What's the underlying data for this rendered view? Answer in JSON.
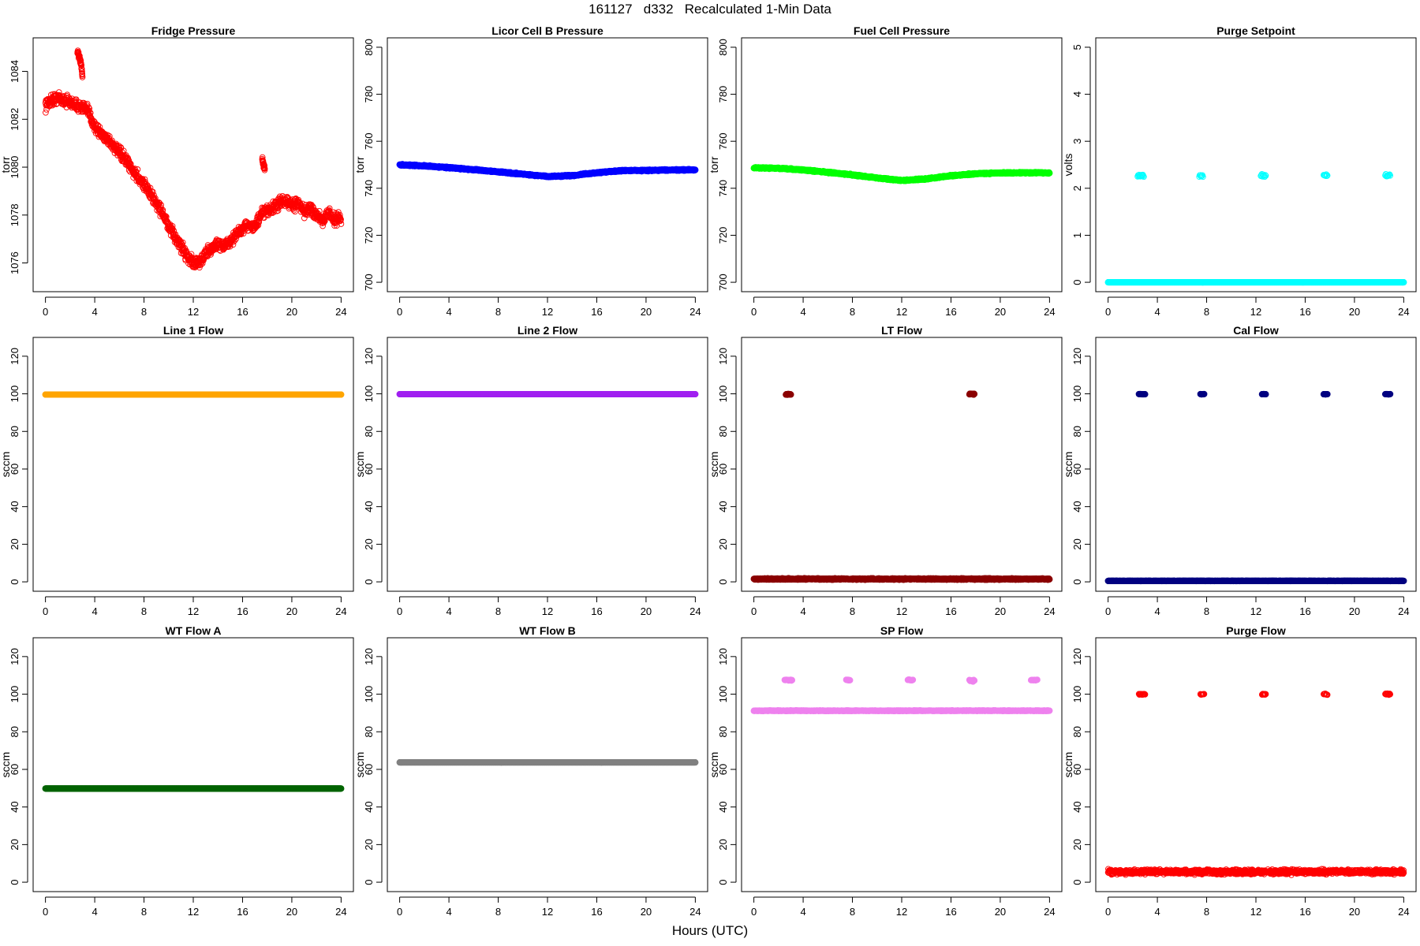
{
  "title": "161127   d332   Recalculated 1-Min Data",
  "xlabel": "Hours (UTC)",
  "chart_data": [
    {
      "type": "scatter",
      "title": "Fridge Pressure",
      "ylabel": "torr",
      "color": "#ff0000",
      "marker": "open",
      "xlim": [
        -1,
        25
      ],
      "ylim": [
        1074.8,
        1085.4
      ],
      "xticks": [
        0,
        4,
        8,
        12,
        16,
        20,
        24
      ],
      "yticks": [
        1076,
        1078,
        1080,
        1082,
        1084
      ],
      "segments": [
        {
          "x": [
            0,
            0.5,
            1,
            1.5,
            2,
            2.5,
            3,
            3.5,
            4,
            4.5,
            5,
            5.5,
            6,
            6.5,
            7,
            7.5,
            8,
            8.5,
            9,
            9.5,
            10,
            10.5,
            11,
            11.5,
            12,
            12.5,
            13,
            13.5,
            14,
            14.5,
            15,
            15.5,
            16,
            16.5,
            17,
            17.5,
            18,
            18.5,
            19,
            19.5,
            20,
            20.5,
            21,
            21.5,
            22,
            22.5,
            23,
            23.5,
            24
          ],
          "y": [
            1082.6,
            1082.8,
            1082.9,
            1082.8,
            1082.7,
            1082.6,
            1082.5,
            1082.3,
            1081.7,
            1081.4,
            1081.2,
            1080.9,
            1080.6,
            1080.3,
            1079.9,
            1079.6,
            1079.3,
            1078.9,
            1078.5,
            1078.1,
            1077.5,
            1077.1,
            1076.7,
            1076.3,
            1076.0,
            1076.0,
            1076.4,
            1076.6,
            1076.8,
            1076.7,
            1076.9,
            1077.2,
            1077.4,
            1077.6,
            1077.5,
            1078.0,
            1078.2,
            1078.3,
            1078.5,
            1078.6,
            1078.4,
            1078.5,
            1078.1,
            1078.3,
            1078.0,
            1077.8,
            1078.1,
            1077.8,
            1077.9
          ],
          "jitter": 0.35,
          "n": 1400
        },
        {
          "x": [
            2.6,
            2.75,
            2.9,
            3.0
          ],
          "y": [
            1084.8,
            1084.6,
            1084.3,
            1083.8
          ],
          "jitter": 0.15,
          "n": 50
        },
        {
          "x": [
            17.6,
            17.8
          ],
          "y": [
            1080.3,
            1079.9
          ],
          "jitter": 0.2,
          "n": 30
        }
      ]
    },
    {
      "type": "scatter",
      "title": "Licor Cell B Pressure",
      "ylabel": "torr",
      "color": "#0000ff",
      "marker": "filled",
      "xlim": [
        -1,
        25
      ],
      "ylim": [
        696,
        804
      ],
      "xticks": [
        0,
        4,
        8,
        12,
        16,
        20,
        24
      ],
      "yticks": [
        700,
        720,
        740,
        760,
        780,
        800
      ],
      "segments": [
        {
          "x": [
            0,
            2,
            4,
            6,
            8,
            10,
            12,
            14,
            16,
            18,
            20,
            22,
            24
          ],
          "y": [
            750,
            749.5,
            748.8,
            747.9,
            747,
            746,
            745,
            745.4,
            746.6,
            747.5,
            747.6,
            747.8,
            747.8
          ],
          "jitter": 0.4,
          "n": 1440
        }
      ]
    },
    {
      "type": "scatter",
      "title": "Fuel Cell Pressure",
      "ylabel": "torr",
      "color": "#00ff00",
      "marker": "filled",
      "xlim": [
        -1,
        25
      ],
      "ylim": [
        696,
        804
      ],
      "xticks": [
        0,
        4,
        8,
        12,
        16,
        20,
        24
      ],
      "yticks": [
        700,
        720,
        740,
        760,
        780,
        800
      ],
      "segments": [
        {
          "x": [
            0,
            2,
            4,
            6,
            8,
            10,
            12,
            14,
            16,
            18,
            20,
            22,
            24
          ],
          "y": [
            748.7,
            748.5,
            747.8,
            746.8,
            745.7,
            744.4,
            743.3,
            744.0,
            745.3,
            746.2,
            746.5,
            746.6,
            746.6
          ],
          "jitter": 0.4,
          "n": 1440
        }
      ]
    },
    {
      "type": "scatter",
      "title": "Purge Setpoint",
      "ylabel": "volts",
      "color": "#00ffff",
      "marker": "mixed",
      "xlim": [
        -1,
        25
      ],
      "ylim": [
        -0.2,
        5.2
      ],
      "xticks": [
        0,
        4,
        8,
        12,
        16,
        20,
        24
      ],
      "yticks": [
        0,
        1,
        2,
        3,
        4,
        5
      ],
      "segments": [
        {
          "x": [
            0,
            24
          ],
          "y": [
            0,
            0
          ],
          "jitter": 0,
          "n": 1200,
          "filled": true
        },
        {
          "x": [
            2.4,
            2.9
          ],
          "y": [
            2.27,
            2.27
          ],
          "jitter": 0.04,
          "n": 14
        },
        {
          "x": [
            7.4,
            7.7
          ],
          "y": [
            2.27,
            2.27
          ],
          "jitter": 0.04,
          "n": 8
        },
        {
          "x": [
            12.4,
            12.8
          ],
          "y": [
            2.27,
            2.27
          ],
          "jitter": 0.04,
          "n": 10
        },
        {
          "x": [
            17.5,
            17.8
          ],
          "y": [
            2.27,
            2.27
          ],
          "jitter": 0.04,
          "n": 8
        },
        {
          "x": [
            22.5,
            22.9
          ],
          "y": [
            2.27,
            2.27
          ],
          "jitter": 0.04,
          "n": 10
        }
      ]
    },
    {
      "type": "scatter",
      "title": "Line 1 Flow",
      "ylabel": "sccm",
      "color": "#ffa500",
      "marker": "filled",
      "xlim": [
        -1,
        25
      ],
      "ylim": [
        -5,
        130
      ],
      "xticks": [
        0,
        4,
        8,
        12,
        16,
        20,
        24
      ],
      "yticks": [
        0,
        20,
        40,
        60,
        80,
        100,
        120
      ],
      "segments": [
        {
          "x": [
            0,
            24
          ],
          "y": [
            99.6,
            99.6
          ],
          "jitter": 0,
          "n": 1200
        }
      ]
    },
    {
      "type": "scatter",
      "title": "Line 2 Flow",
      "ylabel": "sccm",
      "color": "#a020f0",
      "marker": "filled",
      "xlim": [
        -1,
        25
      ],
      "ylim": [
        -5,
        130
      ],
      "xticks": [
        0,
        4,
        8,
        12,
        16,
        20,
        24
      ],
      "yticks": [
        0,
        20,
        40,
        60,
        80,
        100,
        120
      ],
      "segments": [
        {
          "x": [
            0,
            24
          ],
          "y": [
            99.8,
            99.8
          ],
          "jitter": 0,
          "n": 1200
        }
      ]
    },
    {
      "type": "scatter",
      "title": "LT Flow",
      "ylabel": "sccm",
      "color": "#8b0000",
      "marker": "filled",
      "xlim": [
        -1,
        25
      ],
      "ylim": [
        -5,
        130
      ],
      "xticks": [
        0,
        4,
        8,
        12,
        16,
        20,
        24
      ],
      "yticks": [
        0,
        20,
        40,
        60,
        80,
        100,
        120
      ],
      "segments": [
        {
          "x": [
            0,
            24
          ],
          "y": [
            1.5,
            1.5
          ],
          "jitter": 0.5,
          "n": 1200
        },
        {
          "x": [
            2.6,
            3.0
          ],
          "y": [
            99.7,
            99.7
          ],
          "jitter": 0.4,
          "n": 14
        },
        {
          "x": [
            17.5,
            17.9
          ],
          "y": [
            99.9,
            99.9
          ],
          "jitter": 0.4,
          "n": 14
        }
      ]
    },
    {
      "type": "scatter",
      "title": "Cal Flow",
      "ylabel": "sccm",
      "color": "#000080",
      "marker": "filled",
      "xlim": [
        -1,
        25
      ],
      "ylim": [
        -5,
        130
      ],
      "xticks": [
        0,
        4,
        8,
        12,
        16,
        20,
        24
      ],
      "yticks": [
        0,
        20,
        40,
        60,
        80,
        100,
        120
      ],
      "segments": [
        {
          "x": [
            0,
            24
          ],
          "y": [
            0.5,
            0.5
          ],
          "jitter": 0.1,
          "n": 1200
        },
        {
          "x": [
            2.5,
            3.0
          ],
          "y": [
            99.8,
            99.8
          ],
          "jitter": 0.1,
          "n": 14
        },
        {
          "x": [
            7.5,
            7.8
          ],
          "y": [
            99.8,
            99.8
          ],
          "jitter": 0.1,
          "n": 10
        },
        {
          "x": [
            12.5,
            12.8
          ],
          "y": [
            99.8,
            99.8
          ],
          "jitter": 0.1,
          "n": 10
        },
        {
          "x": [
            17.5,
            17.8
          ],
          "y": [
            99.8,
            99.8
          ],
          "jitter": 0.1,
          "n": 10
        },
        {
          "x": [
            22.5,
            22.9
          ],
          "y": [
            99.8,
            99.8
          ],
          "jitter": 0.1,
          "n": 12
        }
      ]
    },
    {
      "type": "scatter",
      "title": "WT Flow A",
      "ylabel": "sccm",
      "color": "#006400",
      "marker": "filled",
      "xlim": [
        -1,
        25
      ],
      "ylim": [
        -5,
        130
      ],
      "xticks": [
        0,
        4,
        8,
        12,
        16,
        20,
        24
      ],
      "yticks": [
        0,
        20,
        40,
        60,
        80,
        100,
        120
      ],
      "segments": [
        {
          "x": [
            0,
            24
          ],
          "y": [
            49.8,
            49.8
          ],
          "jitter": 0,
          "n": 1200
        }
      ]
    },
    {
      "type": "scatter",
      "title": "WT Flow B",
      "ylabel": "sccm",
      "color": "#808080",
      "marker": "filled",
      "xlim": [
        -1,
        25
      ],
      "ylim": [
        -5,
        130
      ],
      "xticks": [
        0,
        4,
        8,
        12,
        16,
        20,
        24
      ],
      "yticks": [
        0,
        20,
        40,
        60,
        80,
        100,
        120
      ],
      "segments": [
        {
          "x": [
            0,
            24
          ],
          "y": [
            63.7,
            63.7
          ],
          "jitter": 0,
          "n": 1200
        }
      ]
    },
    {
      "type": "scatter",
      "title": "SP Flow",
      "ylabel": "sccm",
      "color": "#ee82ee",
      "marker": "filled",
      "xlim": [
        -1,
        25
      ],
      "ylim": [
        -5,
        130
      ],
      "xticks": [
        0,
        4,
        8,
        12,
        16,
        20,
        24
      ],
      "yticks": [
        0,
        20,
        40,
        60,
        80,
        100,
        120
      ],
      "segments": [
        {
          "x": [
            0,
            24
          ],
          "y": [
            91.2,
            91.2
          ],
          "jitter": 0.2,
          "n": 1200
        },
        {
          "x": [
            2.5,
            3.1
          ],
          "y": [
            107.5,
            107.5
          ],
          "jitter": 0.4,
          "n": 12
        },
        {
          "x": [
            7.5,
            7.8
          ],
          "y": [
            107.5,
            107.5
          ],
          "jitter": 0.3,
          "n": 8
        },
        {
          "x": [
            12.5,
            12.9
          ],
          "y": [
            107.5,
            107.5
          ],
          "jitter": 0.3,
          "n": 8
        },
        {
          "x": [
            17.5,
            17.9
          ],
          "y": [
            107.2,
            107.2
          ],
          "jitter": 0.6,
          "n": 8
        },
        {
          "x": [
            22.5,
            23.0
          ],
          "y": [
            107.5,
            107.5
          ],
          "jitter": 0.3,
          "n": 10
        }
      ]
    },
    {
      "type": "scatter",
      "title": "Purge Flow",
      "ylabel": "sccm",
      "color": "#ff0000",
      "marker": "open",
      "xlim": [
        -1,
        25
      ],
      "ylim": [
        -5,
        130
      ],
      "xticks": [
        0,
        4,
        8,
        12,
        16,
        20,
        24
      ],
      "yticks": [
        0,
        20,
        40,
        60,
        80,
        100,
        120
      ],
      "segments": [
        {
          "x": [
            0,
            24
          ],
          "y": [
            5.5,
            5.5
          ],
          "jitter": 1.8,
          "n": 1200
        },
        {
          "x": [
            2.5,
            3.0
          ],
          "y": [
            100,
            100
          ],
          "jitter": 0.5,
          "n": 14
        },
        {
          "x": [
            7.5,
            7.8
          ],
          "y": [
            100,
            100
          ],
          "jitter": 0.5,
          "n": 8
        },
        {
          "x": [
            12.5,
            12.8
          ],
          "y": [
            100,
            100
          ],
          "jitter": 0.6,
          "n": 12
        },
        {
          "x": [
            17.5,
            17.8
          ],
          "y": [
            100,
            100
          ],
          "jitter": 0.5,
          "n": 8
        },
        {
          "x": [
            22.5,
            22.9
          ],
          "y": [
            100,
            100
          ],
          "jitter": 0.5,
          "n": 12
        }
      ]
    }
  ]
}
